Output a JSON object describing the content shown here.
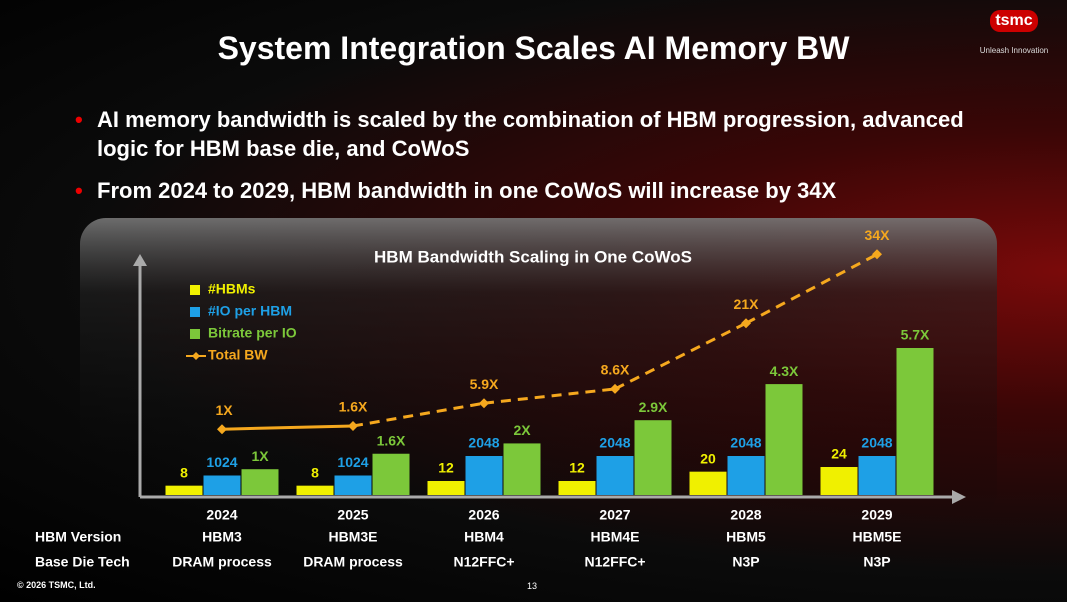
{
  "header": {
    "title": "System Integration Scales AI Memory BW",
    "logo": "tsmc",
    "tagline": "Unleash Innovation"
  },
  "bullets": [
    "AI memory bandwidth is scaled by the combination of HBM progression, advanced logic for HBM base die, and CoWoS",
    "From 2024 to 2029, HBM bandwidth in one CoWoS will increase by 34X"
  ],
  "chart_data": {
    "type": "bar-line",
    "title": "HBM Bandwidth Scaling in One CoWoS",
    "categories": [
      "2024",
      "2025",
      "2026",
      "2027",
      "2028",
      "2029"
    ],
    "series": [
      {
        "name": "#HBMs",
        "color": "#f0f000",
        "values": [
          8,
          8,
          12,
          12,
          20,
          24
        ]
      },
      {
        "name": "#IO per HBM",
        "color": "#1ea0e6",
        "values": [
          1024,
          1024,
          2048,
          2048,
          2048,
          2048
        ]
      },
      {
        "name": "Bitrate per IO",
        "color": "#7cc83a",
        "values": [
          1,
          1.6,
          2,
          2.9,
          4.3,
          5.7
        ],
        "value_labels": [
          "1X",
          "1.6X",
          "2X",
          "2.9X",
          "4.3X",
          "5.7X"
        ]
      },
      {
        "name": "Total BW",
        "color": "#f5a81e",
        "type": "line",
        "values": [
          1,
          1.6,
          5.9,
          8.6,
          21,
          34
        ],
        "value_labels": [
          "1X",
          "1.6X",
          "5.9X",
          "8.6X",
          "21X",
          "34X"
        ]
      }
    ]
  },
  "table": {
    "rows": [
      {
        "label": "HBM Version",
        "values": [
          "HBM3",
          "HBM3E",
          "HBM4",
          "HBM4E",
          "HBM5",
          "HBM5E"
        ]
      },
      {
        "label": "Base Die Tech",
        "values": [
          "DRAM process",
          "DRAM process",
          "N12FFC+",
          "N12FFC+",
          "N3P",
          "N3P"
        ]
      }
    ]
  },
  "footer": {
    "copyright": "© 2026 TSMC, Ltd.",
    "page": "13"
  }
}
